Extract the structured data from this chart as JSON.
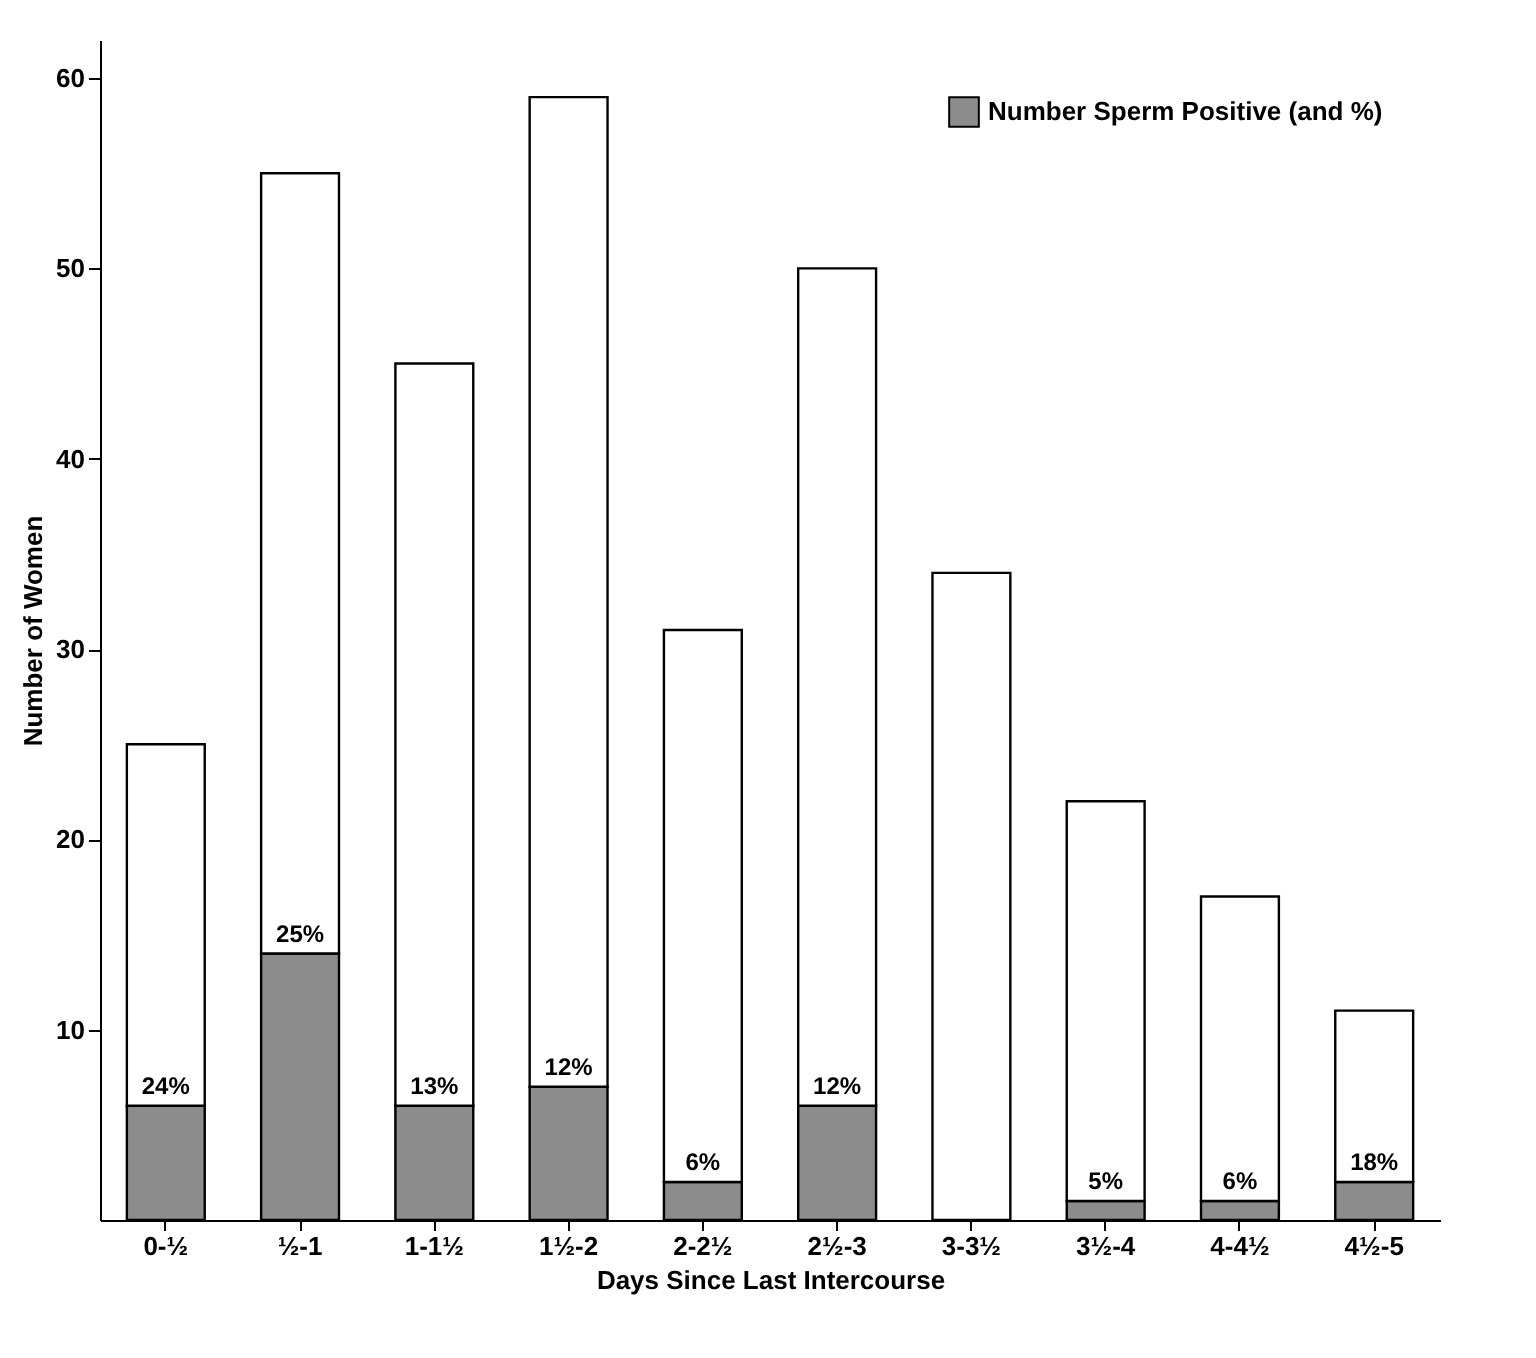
{
  "chart_data": {
    "type": "bar",
    "stacked": true,
    "xlabel": "Days Since Last Intercourse",
    "ylabel": "Number of Women",
    "categories": [
      "0-½",
      "½-1",
      "1-1½",
      "1½-2",
      "2-2½",
      "2½-3",
      "3-3½",
      "3½-4",
      "4-4½",
      "4½-5"
    ],
    "series": [
      {
        "name": "Number Sperm Positive (and %)",
        "color": "#8c8c8c",
        "values": [
          6,
          14,
          6,
          7,
          2,
          6,
          0,
          1,
          1,
          2
        ]
      },
      {
        "color": "#ffffff",
        "values": [
          19,
          41,
          39,
          52,
          29,
          44,
          34,
          21,
          16,
          9
        ]
      }
    ],
    "annotations": [
      {
        "text": "24%",
        "x": "0-½",
        "y": 6
      },
      {
        "text": "25%",
        "x": "½-1",
        "y": 14
      },
      {
        "text": "13%",
        "x": "1-1½",
        "y": 6
      },
      {
        "text": "12%",
        "x": "1½-2",
        "y": 7
      },
      {
        "text": "6%",
        "x": "2-2½",
        "y": 2
      },
      {
        "text": "12%",
        "x": "2½-3",
        "y": 6
      },
      {
        "text": "5%",
        "x": "3½-4",
        "y": 1
      },
      {
        "text": "6%",
        "x": "4-4½",
        "y": 1
      },
      {
        "text": "18%",
        "x": "4½-5",
        "y": 2
      }
    ],
    "ylim": [
      0,
      62
    ],
    "yticks": [
      10,
      20,
      30,
      40,
      50,
      60
    ],
    "grid": false,
    "legend": "top right"
  }
}
